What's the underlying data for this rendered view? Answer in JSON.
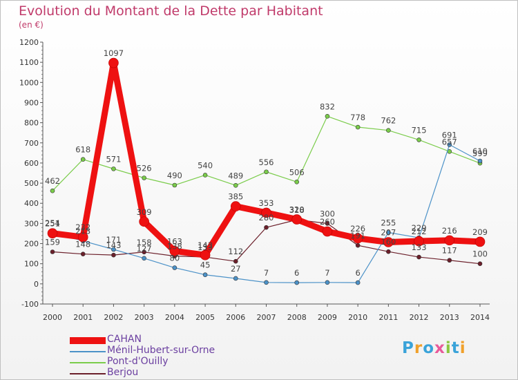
{
  "header": {
    "title": "Evolution du Montant de la Dette par Habitant",
    "subtitle": "(en €)"
  },
  "logo": {
    "letters": [
      "P",
      "r",
      "o",
      "x",
      "i",
      "t",
      "i"
    ],
    "colors": [
      "#3aa3d9",
      "#f0a02a",
      "#3aa3d9",
      "#e85a9a",
      "#8cc63f",
      "#3aa3d9",
      "#f0a02a"
    ]
  },
  "chart_data": {
    "type": "line",
    "x": [
      "2000",
      "2001",
      "2002",
      "2003",
      "2004",
      "2005",
      "2006",
      "2007",
      "2008",
      "2009",
      "2010",
      "2011",
      "2012",
      "2013",
      "2014"
    ],
    "ylim": [
      -100,
      1200
    ],
    "yticks": [
      -100,
      0,
      100,
      200,
      300,
      400,
      500,
      600,
      700,
      800,
      900,
      1000,
      1100,
      1200
    ],
    "grid": false,
    "legend_position": "bottom-left",
    "series": [
      {
        "name": "Berjou",
        "color": "#6b1f2a",
        "values": [
          159,
          148,
          143,
          158,
          138,
          133,
          112,
          280,
          318,
          300,
          191,
          160,
          133,
          117,
          100
        ]
      },
      {
        "name": "Pont-d'Ouilly",
        "color": "#7acc4a",
        "values": [
          462,
          618,
          571,
          526,
          490,
          540,
          489,
          556,
          506,
          832,
          778,
          762,
          715,
          657,
          599
        ]
      },
      {
        "name": "Ménil-Hubert-sur-Orne",
        "color": "#4c92c8",
        "values": [
          254,
          213,
          171,
          127,
          80,
          45,
          27,
          7,
          6,
          7,
          6,
          255,
          229,
          691,
          610
        ]
      },
      {
        "name": "CAHAN",
        "color": "#ee1111",
        "values": [
          251,
          232,
          1097,
          309,
          163,
          143,
          385,
          353,
          320,
          260,
          226,
          207,
          212,
          216,
          209
        ]
      }
    ],
    "legend_order": [
      "CAHAN",
      "Ménil-Hubert-sur-Orne",
      "Pont-d'Ouilly",
      "Berjou"
    ]
  }
}
